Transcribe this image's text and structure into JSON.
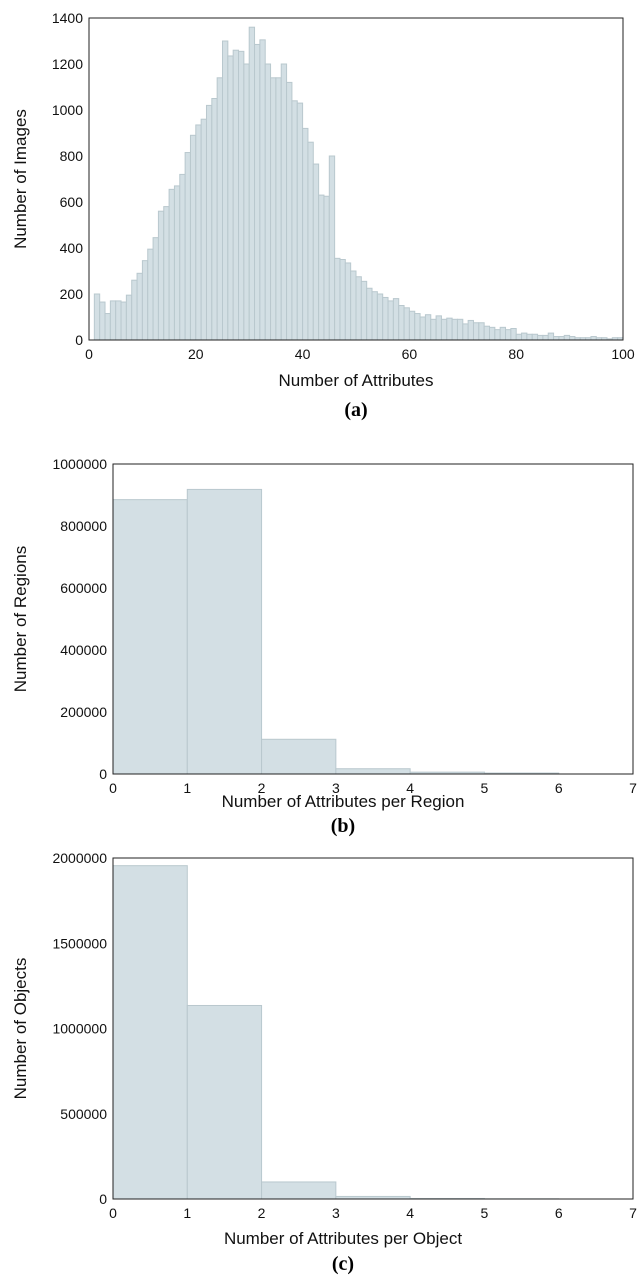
{
  "colors": {
    "bar_fill": "#d3dfe4",
    "bar_stroke": "#b9c8ce",
    "frame": "#222222"
  },
  "chart_data": [
    {
      "type": "bar",
      "panel_label": "(a)",
      "xlabel": "Number of Attributes",
      "ylabel": "Number of Images",
      "xlim": [
        0,
        100
      ],
      "ylim": [
        0,
        1400
      ],
      "xticks": [
        0,
        20,
        40,
        60,
        80,
        100
      ],
      "yticks": [
        0,
        200,
        400,
        600,
        800,
        1000,
        1200,
        1400
      ],
      "grid": false,
      "bin_width": 1,
      "x": [
        1,
        2,
        3,
        4,
        5,
        6,
        7,
        8,
        9,
        10,
        11,
        12,
        13,
        14,
        15,
        16,
        17,
        18,
        19,
        20,
        21,
        22,
        23,
        24,
        25,
        26,
        27,
        28,
        29,
        30,
        31,
        32,
        33,
        34,
        35,
        36,
        37,
        38,
        39,
        40,
        41,
        42,
        43,
        44,
        45,
        46,
        47,
        48,
        49,
        50,
        51,
        52,
        53,
        54,
        55,
        56,
        57,
        58,
        59,
        60,
        61,
        62,
        63,
        64,
        65,
        66,
        67,
        68,
        69,
        70,
        71,
        72,
        73,
        74,
        75,
        76,
        77,
        78,
        79,
        80,
        81,
        82,
        83,
        84,
        85,
        86,
        87,
        88,
        89,
        90,
        91,
        92,
        93,
        94,
        95,
        96,
        97,
        98,
        99
      ],
      "values": [
        200,
        165,
        115,
        170,
        170,
        165,
        195,
        260,
        290,
        345,
        395,
        445,
        560,
        580,
        655,
        670,
        720,
        815,
        890,
        935,
        960,
        1020,
        1050,
        1140,
        1300,
        1235,
        1260,
        1255,
        1200,
        1360,
        1285,
        1305,
        1200,
        1140,
        1140,
        1200,
        1120,
        1040,
        1030,
        920,
        860,
        765,
        630,
        625,
        800,
        355,
        350,
        335,
        300,
        275,
        255,
        225,
        210,
        200,
        185,
        170,
        180,
        150,
        140,
        125,
        115,
        100,
        110,
        90,
        105,
        90,
        95,
        90,
        90,
        70,
        85,
        75,
        75,
        60,
        55,
        45,
        55,
        45,
        50,
        25,
        30,
        25,
        25,
        20,
        20,
        30,
        15,
        15,
        20,
        15,
        10,
        10,
        10,
        15,
        10,
        10,
        5,
        10,
        10
      ]
    },
    {
      "type": "bar",
      "panel_label": "(b)",
      "xlabel": "Number of Attributes per Region",
      "ylabel": "Number of Regions",
      "xlim": [
        0,
        7
      ],
      "ylim": [
        0,
        1000000
      ],
      "xticks": [
        0,
        1,
        2,
        3,
        4,
        5,
        6,
        7
      ],
      "yticks": [
        0,
        200000,
        400000,
        600000,
        800000,
        1000000
      ],
      "grid": false,
      "bin_width": 1,
      "x": [
        0,
        1,
        2,
        3,
        4,
        5
      ],
      "values": [
        885000,
        918000,
        112000,
        17000,
        6000,
        3000
      ]
    },
    {
      "type": "bar",
      "panel_label": "(c)",
      "xlabel": "Number of Attributes per Object",
      "ylabel": "Number of Objects",
      "xlim": [
        0,
        7
      ],
      "ylim": [
        0,
        2000000
      ],
      "xticks": [
        0,
        1,
        2,
        3,
        4,
        5,
        6,
        7
      ],
      "yticks": [
        0,
        500000,
        1000000,
        1500000,
        2000000
      ],
      "grid": false,
      "bin_width": 1,
      "x": [
        0,
        1,
        2,
        3,
        4,
        5
      ],
      "values": [
        1955000,
        1135000,
        100000,
        15000,
        3000,
        1000
      ]
    }
  ]
}
